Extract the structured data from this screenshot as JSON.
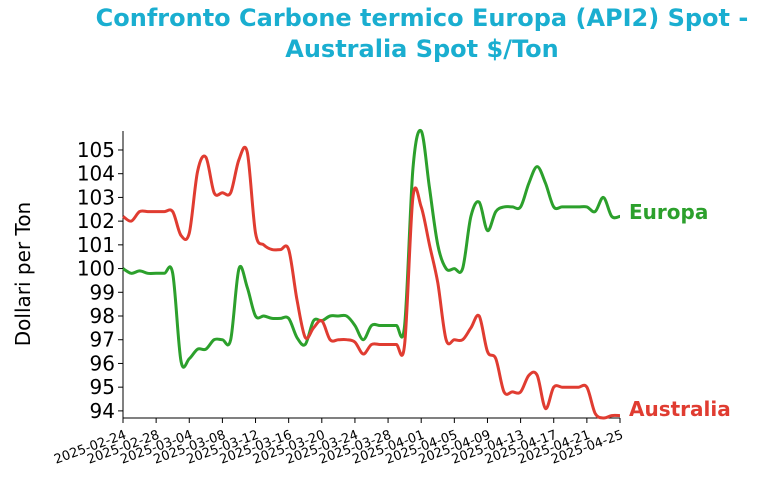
{
  "chart_data": {
    "type": "line",
    "title_lines": [
      "Confronto Carbone termico Europa (API2) Spot -",
      "Australia Spot $/Ton"
    ],
    "xlabel": "",
    "ylabel": "Dollari per Ton",
    "ylim": [
      93.7,
      105.8
    ],
    "yticks": [
      94,
      95,
      96,
      97,
      98,
      99,
      100,
      101,
      102,
      103,
      104,
      105
    ],
    "xlim": [
      "2025-02-24",
      "2025-04-25"
    ],
    "xticks": [
      "2025-02-24",
      "2025-02-28",
      "2025-03-04",
      "2025-03-08",
      "2025-03-12",
      "2025-03-16",
      "2025-03-20",
      "2025-03-24",
      "2025-03-28",
      "2025-04-01",
      "2025-04-05",
      "2025-04-09",
      "2025-04-13",
      "2025-04-17",
      "2025-04-21",
      "2025-04-25"
    ],
    "grid": false,
    "colors": {
      "title": "#1aaed0",
      "europa": "#2ca02c",
      "australia": "#e03c31"
    },
    "series": [
      {
        "name": "Europa",
        "color": "#2ca02c",
        "points": [
          [
            "2025-02-24",
            100.0
          ],
          [
            "2025-02-25",
            99.8
          ],
          [
            "2025-02-26",
            99.9
          ],
          [
            "2025-02-27",
            99.8
          ],
          [
            "2025-02-28",
            99.8
          ],
          [
            "2025-03-01",
            99.8
          ],
          [
            "2025-03-02",
            99.8
          ],
          [
            "2025-03-03",
            96.1
          ],
          [
            "2025-03-04",
            96.2
          ],
          [
            "2025-03-05",
            96.6
          ],
          [
            "2025-03-06",
            96.6
          ],
          [
            "2025-03-07",
            97.0
          ],
          [
            "2025-03-08",
            97.0
          ],
          [
            "2025-03-09",
            97.0
          ],
          [
            "2025-03-10",
            100.0
          ],
          [
            "2025-03-11",
            99.2
          ],
          [
            "2025-03-12",
            98.0
          ],
          [
            "2025-03-13",
            98.0
          ],
          [
            "2025-03-14",
            97.9
          ],
          [
            "2025-03-15",
            97.9
          ],
          [
            "2025-03-16",
            97.9
          ],
          [
            "2025-03-17",
            97.1
          ],
          [
            "2025-03-18",
            96.8
          ],
          [
            "2025-03-19",
            97.8
          ],
          [
            "2025-03-20",
            97.8
          ],
          [
            "2025-03-21",
            98.0
          ],
          [
            "2025-03-22",
            98.0
          ],
          [
            "2025-03-23",
            98.0
          ],
          [
            "2025-03-24",
            97.6
          ],
          [
            "2025-03-25",
            97.0
          ],
          [
            "2025-03-26",
            97.6
          ],
          [
            "2025-03-27",
            97.6
          ],
          [
            "2025-03-28",
            97.6
          ],
          [
            "2025-03-29",
            97.6
          ],
          [
            "2025-03-30",
            97.6
          ],
          [
            "2025-03-31",
            104.2
          ],
          [
            "2025-04-01",
            105.8
          ],
          [
            "2025-04-02",
            103.4
          ],
          [
            "2025-04-03",
            101.0
          ],
          [
            "2025-04-04",
            100.0
          ],
          [
            "2025-04-05",
            100.0
          ],
          [
            "2025-04-06",
            100.0
          ],
          [
            "2025-04-07",
            102.2
          ],
          [
            "2025-04-08",
            102.8
          ],
          [
            "2025-04-09",
            101.6
          ],
          [
            "2025-04-10",
            102.4
          ],
          [
            "2025-04-11",
            102.6
          ],
          [
            "2025-04-12",
            102.6
          ],
          [
            "2025-04-13",
            102.6
          ],
          [
            "2025-04-14",
            103.6
          ],
          [
            "2025-04-15",
            104.3
          ],
          [
            "2025-04-16",
            103.6
          ],
          [
            "2025-04-17",
            102.6
          ],
          [
            "2025-04-18",
            102.6
          ],
          [
            "2025-04-19",
            102.6
          ],
          [
            "2025-04-20",
            102.6
          ],
          [
            "2025-04-21",
            102.6
          ],
          [
            "2025-04-22",
            102.4
          ],
          [
            "2025-04-23",
            103.0
          ],
          [
            "2025-04-24",
            102.2
          ],
          [
            "2025-04-25",
            102.2
          ]
        ]
      },
      {
        "name": "Australia",
        "color": "#e03c31",
        "points": [
          [
            "2025-02-24",
            102.2
          ],
          [
            "2025-02-25",
            102.0
          ],
          [
            "2025-02-26",
            102.4
          ],
          [
            "2025-02-27",
            102.4
          ],
          [
            "2025-02-28",
            102.4
          ],
          [
            "2025-03-01",
            102.4
          ],
          [
            "2025-03-02",
            102.4
          ],
          [
            "2025-03-03",
            101.4
          ],
          [
            "2025-03-04",
            101.5
          ],
          [
            "2025-03-05",
            104.1
          ],
          [
            "2025-03-06",
            104.7
          ],
          [
            "2025-03-07",
            103.2
          ],
          [
            "2025-03-08",
            103.2
          ],
          [
            "2025-03-09",
            103.2
          ],
          [
            "2025-03-10",
            104.6
          ],
          [
            "2025-03-11",
            104.9
          ],
          [
            "2025-03-12",
            101.5
          ],
          [
            "2025-03-13",
            101.0
          ],
          [
            "2025-03-14",
            100.8
          ],
          [
            "2025-03-15",
            100.8
          ],
          [
            "2025-03-16",
            100.8
          ],
          [
            "2025-03-17",
            98.7
          ],
          [
            "2025-03-18",
            97.1
          ],
          [
            "2025-03-19",
            97.5
          ],
          [
            "2025-03-20",
            97.8
          ],
          [
            "2025-03-21",
            97.0
          ],
          [
            "2025-03-22",
            97.0
          ],
          [
            "2025-03-23",
            97.0
          ],
          [
            "2025-03-24",
            96.9
          ],
          [
            "2025-03-25",
            96.4
          ],
          [
            "2025-03-26",
            96.8
          ],
          [
            "2025-03-27",
            96.8
          ],
          [
            "2025-03-28",
            96.8
          ],
          [
            "2025-03-29",
            96.8
          ],
          [
            "2025-03-30",
            96.8
          ],
          [
            "2025-03-31",
            103.0
          ],
          [
            "2025-04-01",
            102.6
          ],
          [
            "2025-04-02",
            101.0
          ],
          [
            "2025-04-03",
            99.4
          ],
          [
            "2025-04-04",
            97.0
          ],
          [
            "2025-04-05",
            97.0
          ],
          [
            "2025-04-06",
            97.0
          ],
          [
            "2025-04-07",
            97.5
          ],
          [
            "2025-04-08",
            98.0
          ],
          [
            "2025-04-09",
            96.5
          ],
          [
            "2025-04-10",
            96.2
          ],
          [
            "2025-04-11",
            94.8
          ],
          [
            "2025-04-12",
            94.8
          ],
          [
            "2025-04-13",
            94.8
          ],
          [
            "2025-04-14",
            95.5
          ],
          [
            "2025-04-15",
            95.5
          ],
          [
            "2025-04-16",
            94.1
          ],
          [
            "2025-04-17",
            95.0
          ],
          [
            "2025-04-18",
            95.0
          ],
          [
            "2025-04-19",
            95.0
          ],
          [
            "2025-04-20",
            95.0
          ],
          [
            "2025-04-21",
            95.0
          ],
          [
            "2025-04-22",
            93.9
          ],
          [
            "2025-04-23",
            93.7
          ],
          [
            "2025-04-24",
            93.8
          ],
          [
            "2025-04-25",
            93.8
          ]
        ]
      }
    ]
  }
}
